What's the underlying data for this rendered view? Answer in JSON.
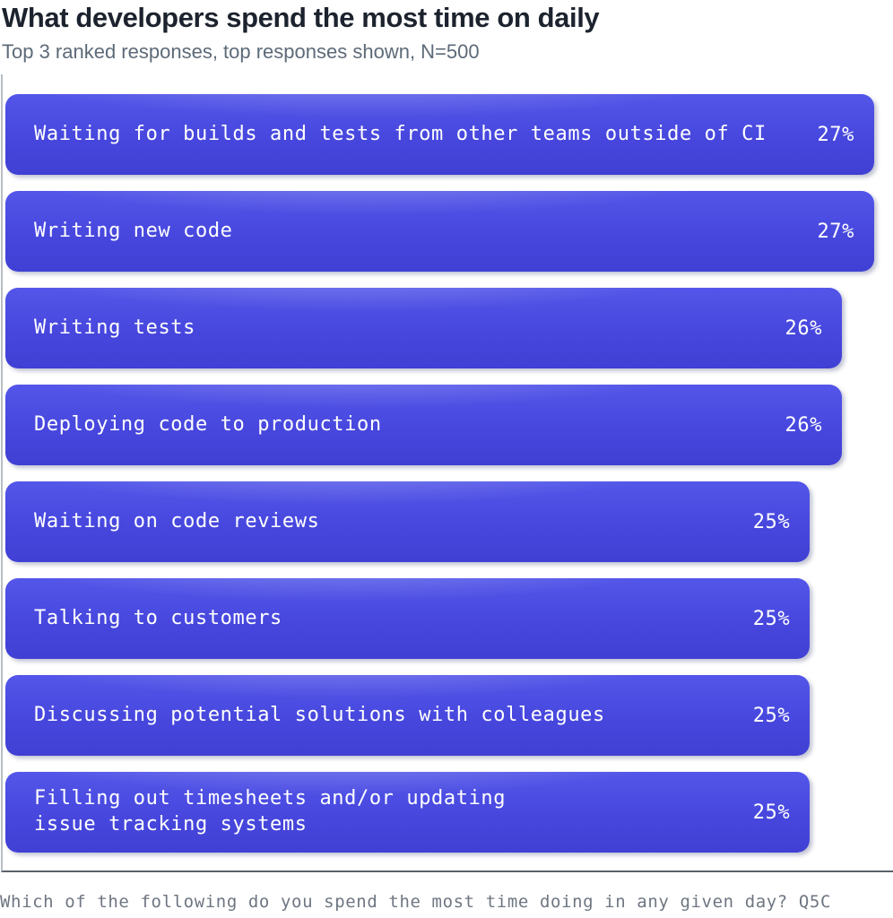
{
  "header": {
    "title": "What developers spend the most time on daily",
    "subtitle": "Top 3 ranked responses, top responses shown, N=500"
  },
  "footer": {
    "question": "Which of the following do you spend the most time doing in any given day? Q5C"
  },
  "colors": {
    "bar_fill": "#4747DE",
    "bar_text": "#FFFFFF",
    "title_text": "#1C232E",
    "subtitle_text": "#5D6A78",
    "axis_left": "#B6BDC5",
    "axis_bottom": "#5A6169",
    "footer_text": "#6E7682"
  },
  "chart_data": {
    "type": "bar",
    "orientation": "horizontal",
    "title": "What developers spend the most time on daily",
    "subtitle": "Top 3 ranked responses, top responses shown, N=500",
    "unit": "%",
    "xlim": [
      0,
      27.6
    ],
    "grid": false,
    "legend": false,
    "value_labels": "inside-right",
    "categories": [
      "Waiting for builds and tests from other teams outside of CI",
      "Writing new code",
      "Writing tests",
      "Deploying code to production",
      "Waiting on code reviews",
      "Talking to customers",
      "Discussing potential solutions with colleagues",
      "Filling out timesheets and/or updating issue tracking systems"
    ],
    "values": [
      27,
      27,
      26,
      26,
      25,
      25,
      25,
      25
    ],
    "bars": [
      {
        "label": "Waiting for builds and tests from other teams outside of CI",
        "value": 27,
        "display": "27%"
      },
      {
        "label": "Writing new code",
        "value": 27,
        "display": "27%"
      },
      {
        "label": "Writing tests",
        "value": 26,
        "display": "26%"
      },
      {
        "label": "Deploying code to production",
        "value": 26,
        "display": "26%"
      },
      {
        "label": "Waiting on code reviews",
        "value": 25,
        "display": "25%"
      },
      {
        "label": "Talking to customers",
        "value": 25,
        "display": "25%"
      },
      {
        "label": "Discussing potential solutions with colleagues",
        "value": 25,
        "display": "25%"
      },
      {
        "label": "Filling out timesheets and/or updating\nissue tracking systems",
        "value": 25,
        "display": "25%"
      }
    ],
    "footnote": "Which of the following do you spend the most time doing in any given day? Q5C"
  }
}
